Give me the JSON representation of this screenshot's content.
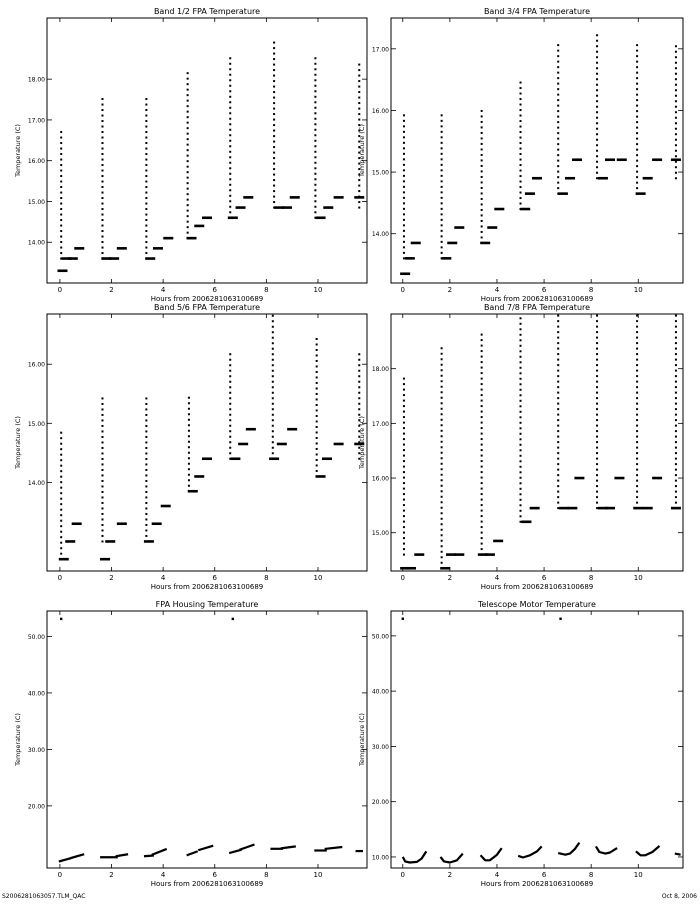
{
  "footer": {
    "left": "S2006281063057.TLM_QAC",
    "right": "Oct 8, 2006"
  },
  "chart_data": [
    {
      "type": "scatter",
      "title": "Band 1/2 FPA Temperature",
      "xlabel": "Hours from 2006281063100689",
      "ylabel": "Temperature (C)",
      "xlim": [
        -0.5,
        11.9
      ],
      "ylim": [
        13.0,
        19.5
      ],
      "xticks": [
        0,
        2,
        4,
        6,
        8,
        10
      ],
      "xtick_labels": [
        "0",
        "2",
        "4",
        "6",
        "8",
        "10"
      ],
      "yticks": [
        14,
        15,
        16,
        17,
        18
      ],
      "ytick_labels": [
        "14.00",
        "15.00",
        "16.00",
        "17.00",
        "18.00"
      ],
      "clusters": [
        [
          0.1,
          13.3
        ],
        [
          0.25,
          13.6
        ],
        [
          0.5,
          13.6
        ],
        [
          0.75,
          13.85
        ],
        [
          1.8,
          13.6
        ],
        [
          2.1,
          13.6
        ],
        [
          2.4,
          13.85
        ],
        [
          3.5,
          13.6
        ],
        [
          3.8,
          13.85
        ],
        [
          4.2,
          14.1
        ],
        [
          5.1,
          14.1
        ],
        [
          5.4,
          14.4
        ],
        [
          5.7,
          14.6
        ],
        [
          6.7,
          14.6
        ],
        [
          7.0,
          14.85
        ],
        [
          7.3,
          15.1
        ],
        [
          8.5,
          14.85
        ],
        [
          8.8,
          14.85
        ],
        [
          9.1,
          15.1
        ],
        [
          10.1,
          14.6
        ],
        [
          10.4,
          14.85
        ],
        [
          10.8,
          15.1
        ],
        [
          11.6,
          15.1
        ]
      ],
      "strips": [
        [
          0.05,
          13.6,
          16.8
        ],
        [
          1.65,
          13.6,
          17.6
        ],
        [
          3.35,
          13.6,
          17.6
        ],
        [
          4.95,
          14.1,
          18.2
        ],
        [
          6.6,
          14.6,
          18.6
        ],
        [
          8.3,
          14.85,
          19.0
        ],
        [
          9.9,
          14.6,
          18.6
        ],
        [
          11.6,
          14.85,
          18.4
        ]
      ]
    },
    {
      "type": "scatter",
      "title": "Band 3/4 FPA Temperature",
      "xlabel": "Hours from 2006281063100689",
      "ylabel": "Temperature (C)",
      "xlim": [
        -0.5,
        11.9
      ],
      "ylim": [
        13.2,
        17.5
      ],
      "xticks": [
        0,
        2,
        4,
        6,
        8,
        10
      ],
      "xtick_labels": [
        "0",
        "2",
        "4",
        "6",
        "8",
        "10"
      ],
      "yticks": [
        14,
        15,
        16,
        17
      ],
      "ytick_labels": [
        "14.00",
        "15.00",
        "16.00",
        "17.00"
      ],
      "clusters": [
        [
          0.1,
          13.35
        ],
        [
          0.3,
          13.6
        ],
        [
          0.55,
          13.85
        ],
        [
          1.85,
          13.6
        ],
        [
          2.1,
          13.85
        ],
        [
          2.4,
          14.1
        ],
        [
          3.5,
          13.85
        ],
        [
          3.8,
          14.1
        ],
        [
          4.1,
          14.4
        ],
        [
          5.2,
          14.4
        ],
        [
          5.4,
          14.65
        ],
        [
          5.7,
          14.9
        ],
        [
          6.8,
          14.65
        ],
        [
          7.1,
          14.9
        ],
        [
          7.4,
          15.2
        ],
        [
          8.5,
          14.9
        ],
        [
          8.8,
          15.2
        ],
        [
          9.3,
          15.2
        ],
        [
          10.1,
          14.65
        ],
        [
          10.4,
          14.9
        ],
        [
          10.8,
          15.2
        ],
        [
          11.6,
          15.2
        ]
      ],
      "strips": [
        [
          0.05,
          13.6,
          16.0
        ],
        [
          1.65,
          13.6,
          16.0
        ],
        [
          3.35,
          13.85,
          16.0
        ],
        [
          5.0,
          14.4,
          16.5
        ],
        [
          6.6,
          14.65,
          17.1
        ],
        [
          8.25,
          14.9,
          17.3
        ],
        [
          9.95,
          14.65,
          17.1
        ],
        [
          11.6,
          14.9,
          17.1
        ]
      ]
    },
    {
      "type": "scatter",
      "title": "Band 5/6 FPA Temperature",
      "xlabel": "Hours from 2006281063100689",
      "ylabel": "Temperature (C)",
      "xlim": [
        -0.5,
        11.9
      ],
      "ylim": [
        12.5,
        16.85
      ],
      "xticks": [
        0,
        2,
        4,
        6,
        8,
        10
      ],
      "xtick_labels": [
        "0",
        "2",
        "4",
        "6",
        "8",
        "10"
      ],
      "yticks": [
        14,
        15,
        16
      ],
      "ytick_labels": [
        "14.00",
        "15.00",
        "16.00"
      ],
      "clusters": [
        [
          0.15,
          12.7
        ],
        [
          0.4,
          13.0
        ],
        [
          0.65,
          13.3
        ],
        [
          1.75,
          12.7
        ],
        [
          1.95,
          13.0
        ],
        [
          2.4,
          13.3
        ],
        [
          3.45,
          13.0
        ],
        [
          3.75,
          13.3
        ],
        [
          4.1,
          13.6
        ],
        [
          5.15,
          13.85
        ],
        [
          5.4,
          14.1
        ],
        [
          5.7,
          14.4
        ],
        [
          6.8,
          14.4
        ],
        [
          7.1,
          14.65
        ],
        [
          7.4,
          14.9
        ],
        [
          8.3,
          14.4
        ],
        [
          8.6,
          14.65
        ],
        [
          9.0,
          14.9
        ],
        [
          10.1,
          14.1
        ],
        [
          10.35,
          14.4
        ],
        [
          10.8,
          14.65
        ],
        [
          11.6,
          14.65
        ]
      ],
      "strips": [
        [
          0.05,
          12.7,
          14.9
        ],
        [
          1.65,
          13.0,
          15.45
        ],
        [
          3.35,
          13.0,
          15.45
        ],
        [
          5.0,
          13.85,
          15.45
        ],
        [
          6.6,
          14.4,
          16.25
        ],
        [
          8.25,
          14.4,
          16.85
        ],
        [
          9.95,
          14.1,
          16.5
        ],
        [
          11.6,
          14.4,
          16.25
        ]
      ]
    },
    {
      "type": "scatter",
      "title": "Band 7/8 FPA Temperature",
      "xlabel": "Hours from 2006281063100689",
      "ylabel": "Temperature (C)",
      "xlim": [
        -0.5,
        11.9
      ],
      "ylim": [
        14.3,
        19.0
      ],
      "xticks": [
        0,
        2,
        4,
        6,
        8,
        10
      ],
      "xtick_labels": [
        "0",
        "2",
        "4",
        "6",
        "8",
        "10"
      ],
      "yticks": [
        15,
        16,
        17,
        18
      ],
      "ytick_labels": [
        "15.00",
        "16.00",
        "17.00",
        "18.00"
      ],
      "clusters": [
        [
          0.1,
          14.35
        ],
        [
          0.35,
          14.35
        ],
        [
          0.7,
          14.6
        ],
        [
          1.8,
          14.35
        ],
        [
          2.05,
          14.6
        ],
        [
          2.4,
          14.6
        ],
        [
          3.4,
          14.6
        ],
        [
          3.7,
          14.6
        ],
        [
          4.05,
          14.85
        ],
        [
          5.25,
          15.2
        ],
        [
          5.6,
          15.45
        ],
        [
          6.85,
          15.45
        ],
        [
          7.2,
          15.45
        ],
        [
          7.5,
          16.0
        ],
        [
          8.5,
          15.45
        ],
        [
          8.8,
          15.45
        ],
        [
          9.2,
          16.0
        ],
        [
          10.0,
          15.45
        ],
        [
          10.4,
          15.45
        ],
        [
          10.8,
          16.0
        ],
        [
          11.6,
          15.45
        ]
      ],
      "strips": [
        [
          0.05,
          14.6,
          17.9
        ],
        [
          1.65,
          14.35,
          18.4
        ],
        [
          3.35,
          14.6,
          18.7
        ],
        [
          5.0,
          15.2,
          19.0
        ],
        [
          6.6,
          15.45,
          19.4
        ],
        [
          8.25,
          15.45,
          19.9
        ],
        [
          9.95,
          15.45,
          19.4
        ],
        [
          11.6,
          15.45,
          19.4
        ]
      ]
    },
    {
      "type": "scatter",
      "title": "FPA Housing Temperature",
      "xlabel": "Hours from 2006281063100689",
      "ylabel": "Temperature (C)",
      "xlim": [
        -0.5,
        11.9
      ],
      "ylim": [
        9.0,
        54.5
      ],
      "xticks": [
        0,
        2,
        4,
        6,
        8,
        10
      ],
      "xtick_labels": [
        "0",
        "2",
        "4",
        "6",
        "8",
        "10"
      ],
      "yticks": [
        20,
        30,
        40,
        50
      ],
      "ytick_labels": [
        "20.00",
        "30.00",
        "40.00",
        "50.00"
      ],
      "outliers": [
        [
          0.05,
          53.1
        ],
        [
          6.7,
          53.1
        ]
      ],
      "segments": [
        [
          0.0,
          10.2,
          0.4,
          10.7
        ],
        [
          0.45,
          10.8,
          0.9,
          11.4
        ],
        [
          1.6,
          10.9,
          2.2,
          10.9
        ],
        [
          2.2,
          11.1,
          2.6,
          11.4
        ],
        [
          3.3,
          11.1,
          3.6,
          11.2
        ],
        [
          3.6,
          11.4,
          4.1,
          12.3
        ],
        [
          4.95,
          11.3,
          5.3,
          11.9
        ],
        [
          5.4,
          12.2,
          5.9,
          12.9
        ],
        [
          6.6,
          11.7,
          7.0,
          12.2
        ],
        [
          7.0,
          12.3,
          7.5,
          13.1
        ],
        [
          8.2,
          12.4,
          8.6,
          12.4
        ],
        [
          8.6,
          12.5,
          9.1,
          12.8
        ],
        [
          9.9,
          12.1,
          10.3,
          12.1
        ],
        [
          10.3,
          12.4,
          10.9,
          12.7
        ],
        [
          11.5,
          12.0,
          11.7,
          12.0
        ]
      ]
    },
    {
      "type": "scatter",
      "title": "Telescope Motor Temperature",
      "xlabel": "Hours from 2006281063100689",
      "ylabel": "Temperature (C)",
      "xlim": [
        -0.5,
        11.9
      ],
      "ylim": [
        8.0,
        54.5
      ],
      "xticks": [
        0,
        2,
        4,
        6,
        8,
        10
      ],
      "xtick_labels": [
        "0",
        "2",
        "4",
        "6",
        "8",
        "10"
      ],
      "yticks": [
        10,
        20,
        30,
        40,
        50
      ],
      "ytick_labels": [
        "10.00",
        "20.00",
        "30.00",
        "40.00",
        "50.00"
      ],
      "outliers": [
        [
          0.0,
          53.1
        ],
        [
          6.7,
          53.1
        ]
      ],
      "curves": [
        [
          [
            0.0,
            10.0
          ],
          [
            0.1,
            9.2
          ],
          [
            0.3,
            9.0
          ],
          [
            0.6,
            9.1
          ],
          [
            0.8,
            9.7
          ],
          [
            1.0,
            11.0
          ]
        ],
        [
          [
            1.6,
            10.0
          ],
          [
            1.75,
            9.2
          ],
          [
            2.0,
            9.0
          ],
          [
            2.3,
            9.4
          ],
          [
            2.55,
            10.6
          ]
        ],
        [
          [
            3.3,
            10.3
          ],
          [
            3.5,
            9.4
          ],
          [
            3.7,
            9.4
          ],
          [
            4.0,
            10.4
          ],
          [
            4.2,
            11.6
          ]
        ],
        [
          [
            4.9,
            10.2
          ],
          [
            5.1,
            9.9
          ],
          [
            5.4,
            10.3
          ],
          [
            5.7,
            11.0
          ],
          [
            5.9,
            11.9
          ]
        ],
        [
          [
            6.6,
            10.7
          ],
          [
            6.9,
            10.4
          ],
          [
            7.1,
            10.6
          ],
          [
            7.3,
            11.4
          ],
          [
            7.5,
            12.6
          ]
        ],
        [
          [
            8.2,
            11.9
          ],
          [
            8.35,
            10.9
          ],
          [
            8.6,
            10.6
          ],
          [
            8.8,
            10.8
          ],
          [
            9.1,
            11.6
          ]
        ],
        [
          [
            9.9,
            11.0
          ],
          [
            10.1,
            10.3
          ],
          [
            10.3,
            10.3
          ],
          [
            10.6,
            10.9
          ],
          [
            10.9,
            12.0
          ]
        ],
        [
          [
            11.55,
            10.6
          ],
          [
            11.8,
            10.4
          ]
        ]
      ]
    }
  ]
}
